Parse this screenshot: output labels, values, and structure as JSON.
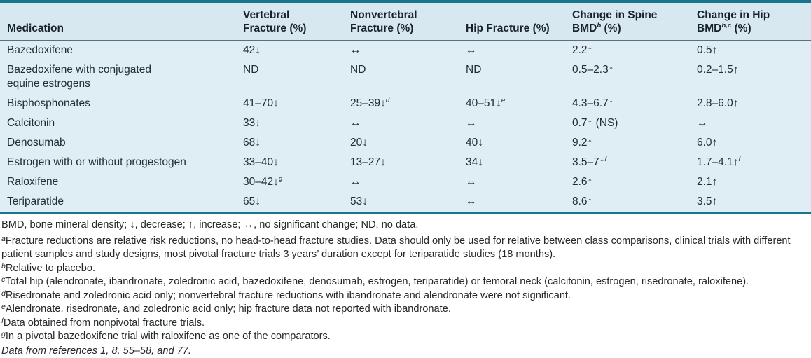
{
  "theme": {
    "accent": "#18768c",
    "header_bg": "#d8e8f1",
    "body_bg": "#dfedf5",
    "rule_gray": "#5f6e79",
    "text": "#1c2630"
  },
  "table": {
    "columns": [
      {
        "label": "Medication"
      },
      {
        "label": "Vertebral\nFracture (%)"
      },
      {
        "label": "Nonvertebral\nFracture (%)"
      },
      {
        "label": "Hip Fracture (%)"
      },
      {
        "label": "Change in Spine\nBMD{b} (%)"
      },
      {
        "label": "Change in Hip\nBMD{b,c} (%)"
      }
    ],
    "rows": [
      [
        "Bazedoxifene",
        "42↓",
        "↔",
        "↔",
        "2.2↑",
        "0.5↑"
      ],
      [
        "Bazedoxifene with conjugated\nequine estrogens",
        "ND",
        "ND",
        "ND",
        "0.5–2.3↑",
        "0.2–1.5↑"
      ],
      [
        "Bisphosphonates",
        "41–70↓",
        "25–39↓{d}",
        "40–51↓{e}",
        "4.3–6.7↑",
        "2.8–6.0↑"
      ],
      [
        "Calcitonin",
        "33↓",
        "↔",
        "↔",
        "0.7↑ (NS)",
        "↔"
      ],
      [
        "Denosumab",
        "68↓",
        "20↓",
        "40↓",
        "9.2↑",
        "6.0↑"
      ],
      [
        "Estrogen with or without progestogen",
        "33–40↓",
        "13–27↓",
        "34↓",
        "3.5–7↑{f}",
        "1.7–4.1↑{f}"
      ],
      [
        "Raloxifene",
        "30–42↓{g}",
        "↔",
        "↔",
        "2.6↑",
        "2.1↑"
      ],
      [
        "Teriparatide",
        "65↓",
        "53↓",
        "↔",
        "8.6↑",
        "3.5↑"
      ]
    ]
  },
  "footnotes": {
    "abbreviations": "BMD, bone mineral density; ↓, decrease; ↑, increase; ↔, no significant change; ND, no data.",
    "items": [
      {
        "sup": "a",
        "text": "Fracture reductions are relative risk reductions, no head-to-head fracture studies. Data should only be used for relative between class comparisons, clinical trials with different patient samples and study designs, most pivotal fracture trials 3 years’ duration except for teriparatide studies (18 months)."
      },
      {
        "sup": "b",
        "text": "Relative to placebo."
      },
      {
        "sup": "c",
        "text": "Total hip (alendronate, ibandronate, zoledronic acid, bazedoxifene, denosumab, estrogen, teriparatide) or femoral neck (calcitonin, estrogen, risedronate, raloxifene)."
      },
      {
        "sup": "d",
        "text": "Risedronate and zoledronic acid only; nonvertebral fracture reductions with ibandronate and alendronate were not significant."
      },
      {
        "sup": "e",
        "text": "Alendronate, risedronate, and zoledronic acid only; hip fracture data not reported with ibandronate."
      },
      {
        "sup": "f",
        "text": "Data obtained from nonpivotal fracture trials."
      },
      {
        "sup": "g",
        "text": "In a pivotal bazedoxifene trial with raloxifene as one of the comparators."
      }
    ],
    "source": "Data from references 1, 8, 55–58, and 77."
  }
}
